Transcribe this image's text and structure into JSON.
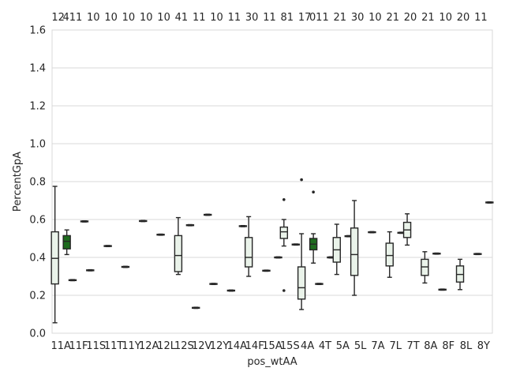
{
  "chart_data": {
    "type": "box",
    "xlabel": "pos_wtAA",
    "ylabel": "PercentGpA",
    "ylim": [
      0.0,
      1.6
    ],
    "yticks": [
      "0.0",
      "0.2",
      "0.4",
      "0.6",
      "0.8",
      "1.0",
      "1.2",
      "1.4",
      "1.6"
    ],
    "grid": "horizontal",
    "colors": {
      "default_fill": "#eaf3ea",
      "highlight_fill": "#1e6b1e",
      "edge": "#262626",
      "grid": "#d9d9d9"
    },
    "categories": [
      "11A",
      "11F",
      "11S",
      "11T",
      "11Y",
      "12A",
      "12L",
      "12S",
      "12V",
      "12Y",
      "14A",
      "14F",
      "15A",
      "15S",
      "4A",
      "4T",
      "5A",
      "5L",
      "7A",
      "7L",
      "7T",
      "8A",
      "8F",
      "8L",
      "8Y"
    ],
    "groups": [
      {
        "cat": "11A",
        "hue": 0,
        "count": "12",
        "q1": 0.26,
        "median": 0.395,
        "q3": 0.535,
        "wlow": 0.055,
        "whigh": 0.775,
        "fliers": []
      },
      {
        "cat": "11A",
        "hue": 1,
        "count": "4",
        "q1": 0.445,
        "median": 0.485,
        "q3": 0.515,
        "wlow": 0.415,
        "whigh": 0.545,
        "fliers": []
      },
      {
        "cat": "11F",
        "hue": 0,
        "count": "11",
        "q1": 0.278,
        "median": 0.28,
        "q3": 0.282,
        "wlow": 0.277,
        "whigh": 0.283,
        "fliers": []
      },
      {
        "cat": "11F",
        "hue": 1,
        "count": "",
        "q1": 0.588,
        "median": 0.59,
        "q3": 0.592,
        "wlow": 0.587,
        "whigh": 0.593,
        "fliers": []
      },
      {
        "cat": "11S",
        "hue": 0,
        "count": "10",
        "q1": 0.33,
        "median": 0.332,
        "q3": 0.334,
        "wlow": 0.329,
        "whigh": 0.335,
        "fliers": []
      },
      {
        "cat": "11T",
        "hue": 0,
        "count": "10",
        "q1": 0.458,
        "median": 0.46,
        "q3": 0.462,
        "wlow": 0.457,
        "whigh": 0.463,
        "fliers": []
      },
      {
        "cat": "11Y",
        "hue": 0,
        "count": "10",
        "q1": 0.348,
        "median": 0.35,
        "q3": 0.352,
        "wlow": 0.347,
        "whigh": 0.353,
        "fliers": []
      },
      {
        "cat": "12A",
        "hue": 0,
        "count": "10",
        "q1": 0.59,
        "median": 0.592,
        "q3": 0.594,
        "wlow": 0.589,
        "whigh": 0.595,
        "fliers": []
      },
      {
        "cat": "12L",
        "hue": 0,
        "count": "10",
        "q1": 0.518,
        "median": 0.52,
        "q3": 0.522,
        "wlow": 0.517,
        "whigh": 0.523,
        "fliers": []
      },
      {
        "cat": "12S",
        "hue": 0,
        "count": "41",
        "q1": 0.325,
        "median": 0.41,
        "q3": 0.515,
        "wlow": 0.31,
        "whigh": 0.61,
        "fliers": []
      },
      {
        "cat": "12S",
        "hue": 1,
        "count": "",
        "q1": 0.568,
        "median": 0.57,
        "q3": 0.572,
        "wlow": 0.567,
        "whigh": 0.573,
        "fliers": []
      },
      {
        "cat": "12V",
        "hue": 0,
        "count": "11",
        "q1": 0.132,
        "median": 0.134,
        "q3": 0.136,
        "wlow": 0.131,
        "whigh": 0.137,
        "fliers": []
      },
      {
        "cat": "12V",
        "hue": 1,
        "count": "",
        "q1": 0.623,
        "median": 0.625,
        "q3": 0.627,
        "wlow": 0.622,
        "whigh": 0.628,
        "fliers": []
      },
      {
        "cat": "12Y",
        "hue": 0,
        "count": "10",
        "q1": 0.258,
        "median": 0.26,
        "q3": 0.262,
        "wlow": 0.257,
        "whigh": 0.263,
        "fliers": []
      },
      {
        "cat": "14A",
        "hue": 0,
        "count": "11",
        "q1": 0.223,
        "median": 0.225,
        "q3": 0.227,
        "wlow": 0.222,
        "whigh": 0.228,
        "fliers": []
      },
      {
        "cat": "14A",
        "hue": 1,
        "count": "",
        "q1": 0.563,
        "median": 0.565,
        "q3": 0.567,
        "wlow": 0.562,
        "whigh": 0.568,
        "fliers": []
      },
      {
        "cat": "14F",
        "hue": 0,
        "count": "30",
        "q1": 0.35,
        "median": 0.4,
        "q3": 0.505,
        "wlow": 0.3,
        "whigh": 0.615,
        "fliers": []
      },
      {
        "cat": "15A",
        "hue": 0,
        "count": "11",
        "q1": 0.328,
        "median": 0.33,
        "q3": 0.332,
        "wlow": 0.327,
        "whigh": 0.333,
        "fliers": []
      },
      {
        "cat": "15A",
        "hue": 1,
        "count": "",
        "q1": 0.398,
        "median": 0.4,
        "q3": 0.402,
        "wlow": 0.397,
        "whigh": 0.403,
        "fliers": []
      },
      {
        "cat": "15S",
        "hue": 0,
        "count": "81",
        "q1": 0.5,
        "median": 0.535,
        "q3": 0.56,
        "wlow": 0.46,
        "whigh": 0.6,
        "fliers": [
          0.705,
          0.225
        ]
      },
      {
        "cat": "15S",
        "hue": 1,
        "count": "",
        "q1": 0.466,
        "median": 0.468,
        "q3": 0.47,
        "wlow": 0.465,
        "whigh": 0.471,
        "fliers": []
      },
      {
        "cat": "4A",
        "hue": 0,
        "count": "17",
        "q1": 0.18,
        "median": 0.24,
        "q3": 0.35,
        "wlow": 0.125,
        "whigh": 0.525,
        "fliers": [
          0.81
        ]
      },
      {
        "cat": "4A",
        "hue": 1,
        "count": "0",
        "q1": 0.44,
        "median": 0.47,
        "q3": 0.5,
        "wlow": 0.37,
        "whigh": 0.525,
        "fliers": [
          0.745
        ]
      },
      {
        "cat": "4T",
        "hue": 0,
        "count": "11",
        "q1": 0.258,
        "median": 0.26,
        "q3": 0.262,
        "wlow": 0.257,
        "whigh": 0.263,
        "fliers": []
      },
      {
        "cat": "4T",
        "hue": 1,
        "count": "",
        "q1": 0.398,
        "median": 0.4,
        "q3": 0.402,
        "wlow": 0.397,
        "whigh": 0.403,
        "fliers": []
      },
      {
        "cat": "5A",
        "hue": 0,
        "count": "21",
        "q1": 0.375,
        "median": 0.44,
        "q3": 0.505,
        "wlow": 0.31,
        "whigh": 0.575,
        "fliers": []
      },
      {
        "cat": "5A",
        "hue": 1,
        "count": "",
        "q1": 0.51,
        "median": 0.512,
        "q3": 0.514,
        "wlow": 0.509,
        "whigh": 0.515,
        "fliers": []
      },
      {
        "cat": "5L",
        "hue": 0,
        "count": "30",
        "q1": 0.305,
        "median": 0.415,
        "q3": 0.555,
        "wlow": 0.2,
        "whigh": 0.7,
        "fliers": []
      },
      {
        "cat": "7A",
        "hue": 0,
        "count": "10",
        "q1": 0.531,
        "median": 0.533,
        "q3": 0.535,
        "wlow": 0.53,
        "whigh": 0.536,
        "fliers": []
      },
      {
        "cat": "7L",
        "hue": 0,
        "count": "21",
        "q1": 0.355,
        "median": 0.41,
        "q3": 0.475,
        "wlow": 0.295,
        "whigh": 0.535,
        "fliers": []
      },
      {
        "cat": "7L",
        "hue": 1,
        "count": "",
        "q1": 0.528,
        "median": 0.53,
        "q3": 0.532,
        "wlow": 0.527,
        "whigh": 0.533,
        "fliers": []
      },
      {
        "cat": "7T",
        "hue": 0,
        "count": "20",
        "q1": 0.505,
        "median": 0.545,
        "q3": 0.585,
        "wlow": 0.465,
        "whigh": 0.63,
        "fliers": []
      },
      {
        "cat": "8A",
        "hue": 0,
        "count": "21",
        "q1": 0.305,
        "median": 0.35,
        "q3": 0.39,
        "wlow": 0.265,
        "whigh": 0.43,
        "fliers": []
      },
      {
        "cat": "8A",
        "hue": 1,
        "count": "",
        "q1": 0.418,
        "median": 0.42,
        "q3": 0.422,
        "wlow": 0.417,
        "whigh": 0.423,
        "fliers": []
      },
      {
        "cat": "8F",
        "hue": 0,
        "count": "10",
        "q1": 0.228,
        "median": 0.23,
        "q3": 0.232,
        "wlow": 0.227,
        "whigh": 0.233,
        "fliers": []
      },
      {
        "cat": "8L",
        "hue": 0,
        "count": "20",
        "q1": 0.27,
        "median": 0.31,
        "q3": 0.355,
        "wlow": 0.23,
        "whigh": 0.39,
        "fliers": []
      },
      {
        "cat": "8Y",
        "hue": 0,
        "count": "11",
        "q1": 0.416,
        "median": 0.418,
        "q3": 0.42,
        "wlow": 0.415,
        "whigh": 0.421,
        "fliers": []
      },
      {
        "cat": "8Y",
        "hue": 1,
        "count": "",
        "q1": 0.688,
        "median": 0.69,
        "q3": 0.692,
        "wlow": 0.687,
        "whigh": 0.693,
        "fliers": []
      }
    ]
  }
}
